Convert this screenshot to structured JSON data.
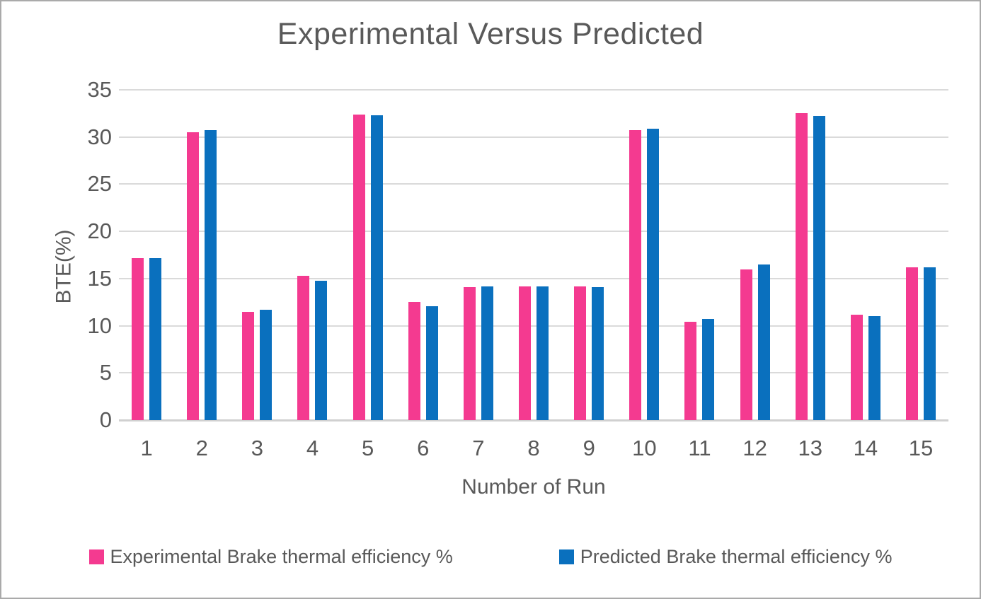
{
  "chart_data": {
    "type": "bar",
    "title": "Experimental Versus Predicted",
    "xlabel": "Number of Run",
    "ylabel": "BTE(%)",
    "categories": [
      "1",
      "2",
      "3",
      "4",
      "5",
      "6",
      "7",
      "8",
      "9",
      "10",
      "11",
      "12",
      "13",
      "14",
      "15"
    ],
    "series": [
      {
        "name": "Experimental Brake thermal efficiency %",
        "color": "#F43A90",
        "values": [
          17.2,
          30.5,
          11.5,
          15.3,
          32.4,
          12.5,
          14.1,
          14.2,
          14.2,
          30.7,
          10.4,
          16.0,
          32.5,
          11.2,
          16.2
        ]
      },
      {
        "name": "Predicted Brake thermal efficiency %",
        "color": "#0A70BE",
        "values": [
          17.2,
          30.7,
          11.7,
          14.8,
          32.3,
          12.1,
          14.2,
          14.2,
          14.1,
          30.9,
          10.7,
          16.5,
          32.2,
          11.0,
          16.2
        ]
      }
    ],
    "ylim": [
      0,
      35
    ],
    "yticks": [
      0,
      5,
      10,
      15,
      20,
      25,
      30,
      35
    ],
    "grid": true,
    "legend_position": "bottom",
    "gridline_color": "#DADADA",
    "baseline_color": "#D0D0D0",
    "text_color": "#595959"
  }
}
